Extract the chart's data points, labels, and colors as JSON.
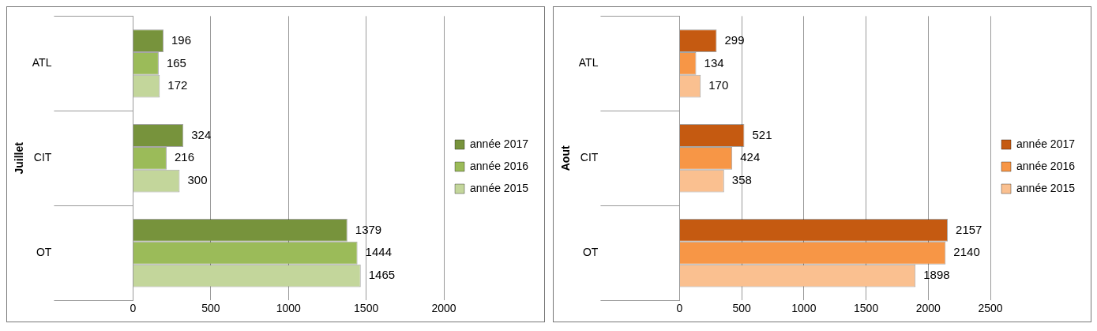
{
  "chart_data": [
    {
      "type": "bar",
      "orientation": "horizontal",
      "ylabel": "Juillet",
      "categories": [
        "ATL",
        "CIT",
        "OT"
      ],
      "series": [
        {
          "name": "année 2017",
          "color": "#77933c",
          "values": [
            196,
            324,
            1379
          ]
        },
        {
          "name": "année 2016",
          "color": "#9bbb59",
          "values": [
            165,
            216,
            1444
          ]
        },
        {
          "name": "année 2015",
          "color": "#c3d69b",
          "values": [
            172,
            300,
            1465
          ]
        }
      ],
      "xlim": [
        0,
        2000
      ],
      "xticks": [
        0,
        500,
        1000,
        1500,
        2000
      ],
      "grid": "x",
      "legend": "right",
      "data_labels": true
    },
    {
      "type": "bar",
      "orientation": "horizontal",
      "ylabel": "Aout",
      "categories": [
        "ATL",
        "CIT",
        "OT"
      ],
      "series": [
        {
          "name": "année 2017",
          "color": "#c55a11",
          "values": [
            299,
            521,
            2157
          ]
        },
        {
          "name": "année 2016",
          "color": "#f79646",
          "values": [
            134,
            424,
            2140
          ]
        },
        {
          "name": "année 2015",
          "color": "#fac090",
          "values": [
            170,
            358,
            1898
          ]
        }
      ],
      "xlim": [
        0,
        2500
      ],
      "xticks": [
        0,
        500,
        1000,
        1500,
        2000,
        2500
      ],
      "grid": "x",
      "legend": "right",
      "data_labels": true
    }
  ]
}
